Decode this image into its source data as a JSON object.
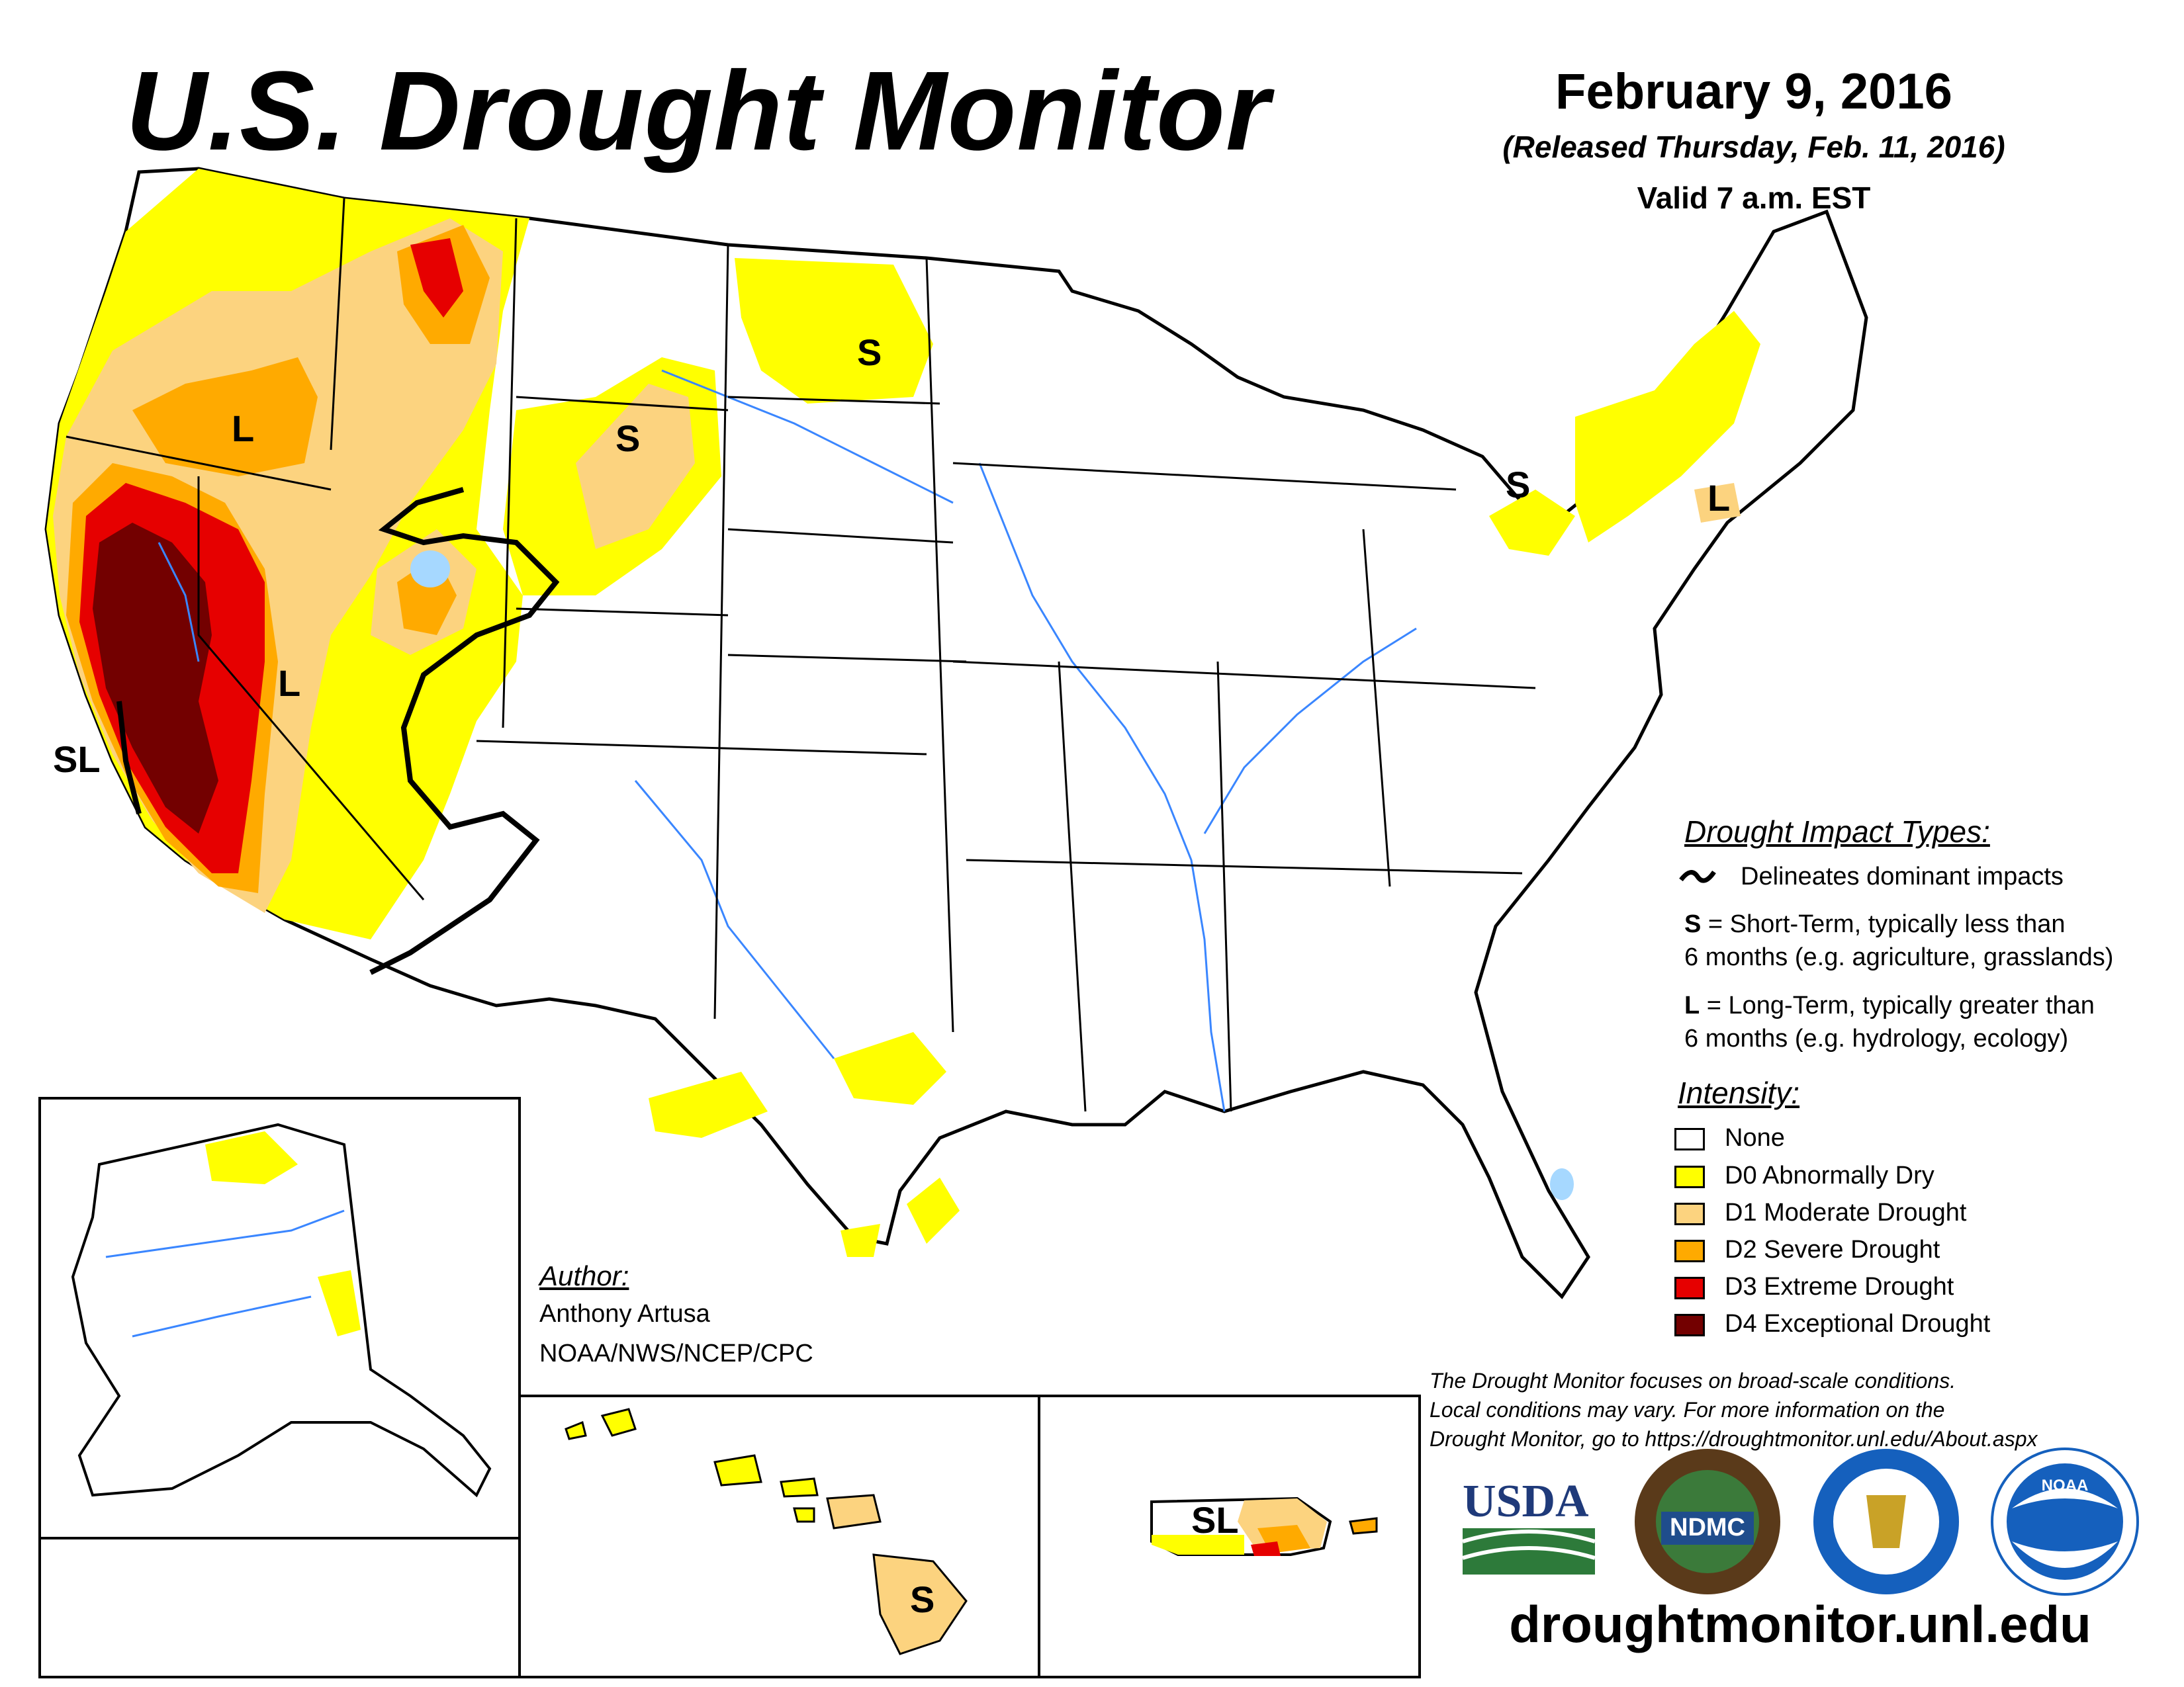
{
  "header": {
    "title": "U.S. Drought Monitor",
    "date": "February 9, 2016",
    "released": "(Released Thursday, Feb. 11, 2016)",
    "valid": "Valid 7 a.m. EST"
  },
  "map_labels": {
    "L": "L",
    "S": "S",
    "SL": "SL"
  },
  "legend": {
    "impact_title": "Drought Impact Types:",
    "delineates": "Delineates dominant impacts",
    "s_key": "S",
    "s_text_1": " = Short-Term, typically less than",
    "s_text_2": "6 months (e.g. agriculture, grasslands)",
    "l_key": "L",
    "l_text_1": " = Long-Term, typically greater than",
    "l_text_2": "6 months (e.g. hydrology, ecology)",
    "intensity_title": "Intensity:",
    "categories": [
      {
        "label": "None",
        "color": "#ffffff"
      },
      {
        "label": "D0 Abnormally Dry",
        "color": "#ffff00"
      },
      {
        "label": "D1 Moderate Drought",
        "color": "#fcd37f"
      },
      {
        "label": "D2 Severe Drought",
        "color": "#ffaa00"
      },
      {
        "label": "D3 Extreme Drought",
        "color": "#e60000"
      },
      {
        "label": "D4 Exceptional Drought",
        "color": "#730000"
      }
    ]
  },
  "author": {
    "heading": "Author:",
    "name": "Anthony Artusa",
    "org": "NOAA/NWS/NCEP/CPC"
  },
  "note": {
    "line1": "The Drought Monitor focuses on broad-scale conditions.",
    "line2": "Local conditions may vary. For more information on the",
    "line3": "Drought Monitor, go to https://droughtmonitor.unl.edu/About.aspx"
  },
  "logos": {
    "usda": "USDA",
    "ndmc": "NDMC",
    "noaa": "NOAA"
  },
  "footer_url": "droughtmonitor.unl.edu",
  "colors": {
    "water": "#3a86ff",
    "lake": "#a6d8ff",
    "d0": "#ffff00",
    "d1": "#fcd37f",
    "d2": "#ffaa00",
    "d3": "#e60000",
    "d4": "#730000"
  }
}
